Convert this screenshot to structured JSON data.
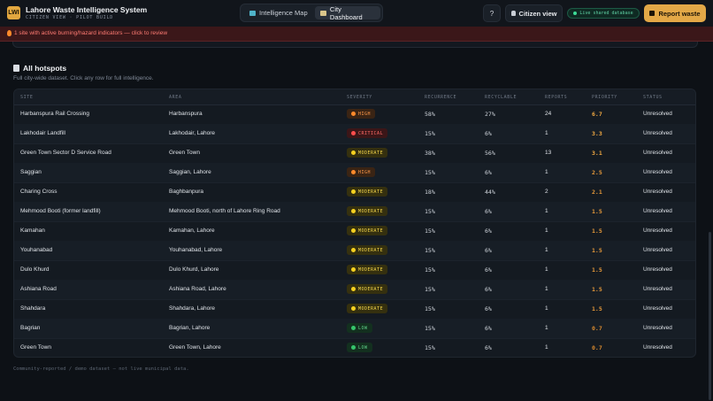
{
  "app": {
    "logo_text": "LWI",
    "title": "Lahore Waste Intelligence System",
    "subtitle": "CITIZEN VIEW · PILOT BUILD"
  },
  "nav": {
    "tabs": [
      {
        "label": "Intelligence Map",
        "icon": "map-icon",
        "active": false
      },
      {
        "label": "City Dashboard",
        "icon": "chart-icon",
        "active": true
      }
    ],
    "help_label": "?",
    "citizen_label": "Citizen view",
    "live_label": "Live shared database",
    "report_label": "Report waste"
  },
  "alert": {
    "text": "1 site with active burning/hazard indicators — click to review"
  },
  "section": {
    "title": "All hotspots",
    "subtitle": "Full city-wide dataset. Click any row for full intelligence."
  },
  "table": {
    "columns": [
      "SITE",
      "AREA",
      "SEVERITY",
      "RECURRENCE",
      "RECYCLABLE",
      "REPORTS",
      "PRIORITY",
      "STATUS"
    ],
    "rows": [
      {
        "site": "Harbanspura Rail Crossing",
        "area": "Harbanspura",
        "severity": "HIGH",
        "recurrence": "58%",
        "recyclable": "27%",
        "reports": "24",
        "priority": "6.7",
        "status": "Unresolved"
      },
      {
        "site": "Lakhodair Landfill",
        "area": "Lakhodair, Lahore",
        "severity": "CRITICAL",
        "recurrence": "15%",
        "recyclable": "6%",
        "reports": "1",
        "priority": "3.3",
        "status": "Unresolved"
      },
      {
        "site": "Green Town Sector D Service Road",
        "area": "Green Town",
        "severity": "MODERATE",
        "recurrence": "38%",
        "recyclable": "56%",
        "reports": "13",
        "priority": "3.1",
        "status": "Unresolved"
      },
      {
        "site": "Saggian",
        "area": "Saggian, Lahore",
        "severity": "HIGH",
        "recurrence": "15%",
        "recyclable": "6%",
        "reports": "1",
        "priority": "2.5",
        "status": "Unresolved"
      },
      {
        "site": "Charing Cross",
        "area": "Baghbanpura",
        "severity": "MODERATE",
        "recurrence": "18%",
        "recyclable": "44%",
        "reports": "2",
        "priority": "2.1",
        "status": "Unresolved"
      },
      {
        "site": "Mehmood Booti (former landfill)",
        "area": "Mehmood Booti, north of Lahore Ring Road",
        "severity": "MODERATE",
        "recurrence": "15%",
        "recyclable": "6%",
        "reports": "1",
        "priority": "1.5",
        "status": "Unresolved"
      },
      {
        "site": "Kamahan",
        "area": "Kamahan, Lahore",
        "severity": "MODERATE",
        "recurrence": "15%",
        "recyclable": "6%",
        "reports": "1",
        "priority": "1.5",
        "status": "Unresolved"
      },
      {
        "site": "Youhanabad",
        "area": "Youhanabad, Lahore",
        "severity": "MODERATE",
        "recurrence": "15%",
        "recyclable": "6%",
        "reports": "1",
        "priority": "1.5",
        "status": "Unresolved"
      },
      {
        "site": "Dulo Khurd",
        "area": "Dulo Khurd, Lahore",
        "severity": "MODERATE",
        "recurrence": "15%",
        "recyclable": "6%",
        "reports": "1",
        "priority": "1.5",
        "status": "Unresolved"
      },
      {
        "site": "Ashiana Road",
        "area": "Ashiana Road, Lahore",
        "severity": "MODERATE",
        "recurrence": "15%",
        "recyclable": "6%",
        "reports": "1",
        "priority": "1.5",
        "status": "Unresolved"
      },
      {
        "site": "Shahdara",
        "area": "Shahdara, Lahore",
        "severity": "MODERATE",
        "recurrence": "15%",
        "recyclable": "6%",
        "reports": "1",
        "priority": "1.5",
        "status": "Unresolved"
      },
      {
        "site": "Bagrian",
        "area": "Bagrian, Lahore",
        "severity": "LOW",
        "recurrence": "15%",
        "recyclable": "6%",
        "reports": "1",
        "priority": "0.7",
        "status": "Unresolved"
      },
      {
        "site": "Green Town",
        "area": "Green Town, Lahore",
        "severity": "LOW",
        "recurrence": "15%",
        "recyclable": "6%",
        "reports": "1",
        "priority": "0.7",
        "status": "Unresolved"
      }
    ]
  },
  "severity_styles": {
    "HIGH": {
      "bg": "#3a2414",
      "fg": "#ff9a4a",
      "dot": "#ff8a2b"
    },
    "CRITICAL": {
      "bg": "#3b1618",
      "fg": "#ff6b66",
      "dot": "#ff4d4d"
    },
    "MODERATE": {
      "bg": "#35300f",
      "fg": "#f2d44a",
      "dot": "#f5d020"
    },
    "LOW": {
      "bg": "#13301f",
      "fg": "#5fd18a",
      "dot": "#36c46b"
    }
  },
  "priority_colors": {
    "high": "#f0a842",
    "mid": "#e89a3a",
    "low": "#d98a2e"
  },
  "footer": {
    "text": "Community-reported / demo dataset — not live municipal data."
  }
}
